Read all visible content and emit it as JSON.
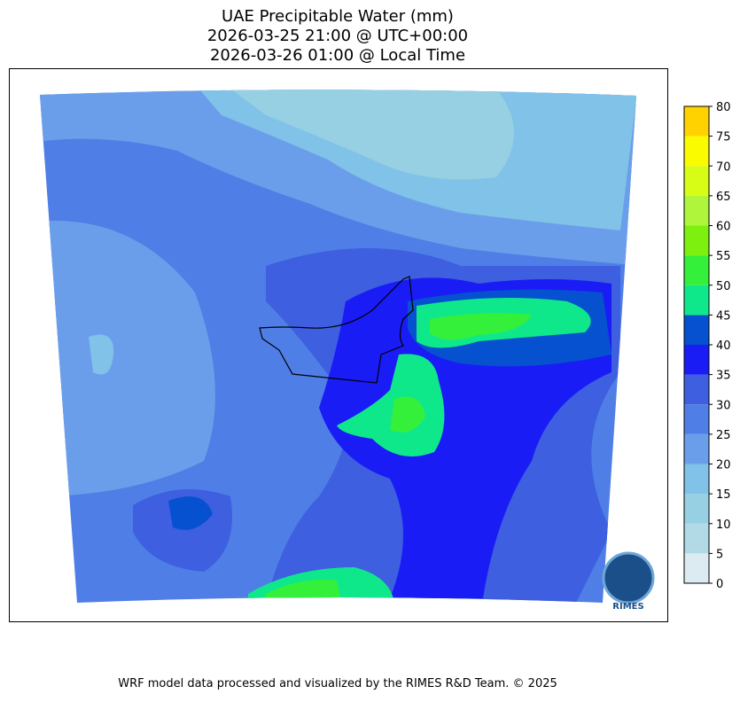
{
  "title": [
    "UAE Precipitable Water (mm)",
    "2026-03-25 21:00 @ UTC+00:00",
    "2026-03-26 01:00 @ Local Time"
  ],
  "colorbar": {
    "ticks": [
      0,
      5,
      10,
      15,
      20,
      25,
      30,
      35,
      40,
      45,
      50,
      55,
      60,
      65,
      70,
      75,
      80
    ],
    "colors": [
      "#dceaf1",
      "#b2dae6",
      "#97cfe3",
      "#80c2e8",
      "#6b9eea",
      "#4f7fe6",
      "#3d5fe0",
      "#1a1cf5",
      "#0551cf",
      "#0fe88a",
      "#35f03a",
      "#7ef00f",
      "#aef53c",
      "#d7fc16",
      "#fbfb00",
      "#ffd200"
    ]
  },
  "logo": "RIMES",
  "footer": "WRF model data processed and visualized by the RIMES R&D Team. © 2025"
}
